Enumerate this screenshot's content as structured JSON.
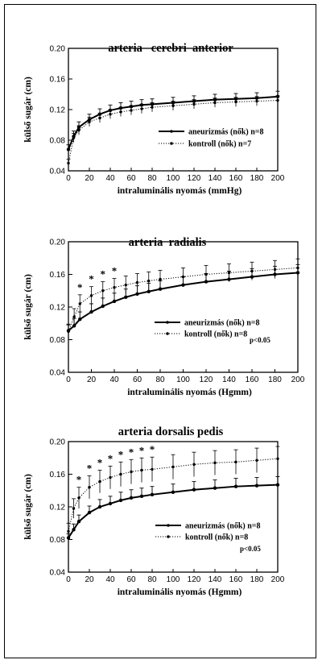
{
  "chart_data": [
    {
      "type": "line",
      "title": "arteria   cerebri  anterior",
      "xlabel": "intraluminális nyomás (mmHg)",
      "ylabel": "külső sugár (cm)",
      "xlim": [
        0,
        200
      ],
      "ylim": [
        0.04,
        0.2
      ],
      "xticks": [
        "0",
        "20",
        "40",
        "60",
        "80",
        "100",
        "120",
        "140",
        "160",
        "180",
        "200"
      ],
      "yticks": [
        "0.04",
        "0.08",
        "0.12",
        "0.16",
        "0.20"
      ],
      "x": [
        0,
        5,
        10,
        20,
        30,
        40,
        50,
        60,
        70,
        80,
        100,
        120,
        140,
        160,
        180,
        200
      ],
      "legend_placement": "right",
      "annotation": "",
      "significant_x": [],
      "significance_symbol": "*",
      "series": [
        {
          "name": "aneurizmás (nők) n=8",
          "style": "solid",
          "values": [
            0.068,
            0.085,
            0.097,
            0.107,
            0.114,
            0.119,
            0.122,
            0.124,
            0.126,
            0.127,
            0.129,
            0.131,
            0.133,
            0.134,
            0.135,
            0.137
          ],
          "errors": [
            0.006,
            0.007,
            0.007,
            0.007,
            0.007,
            0.007,
            0.007,
            0.007,
            0.007,
            0.007,
            0.007,
            0.007,
            0.007,
            0.007,
            0.007,
            0.007
          ]
        },
        {
          "name": "kontroll (nők) n=7",
          "style": "dotted",
          "values": [
            0.05,
            0.083,
            0.093,
            0.104,
            0.109,
            0.114,
            0.117,
            0.119,
            0.121,
            0.123,
            0.125,
            0.127,
            0.129,
            0.13,
            0.131,
            0.132
          ],
          "errors": [
            0.005,
            0.006,
            0.006,
            0.006,
            0.006,
            0.006,
            0.006,
            0.006,
            0.006,
            0.006,
            0.006,
            0.006,
            0.006,
            0.006,
            0.006,
            0.006
          ]
        }
      ]
    },
    {
      "type": "line",
      "title": "arteria  radialis",
      "xlabel": "intraluminális nyomás (Hgmm)",
      "ylabel": "külső sugár (cm)",
      "xlim": [
        0,
        200
      ],
      "ylim": [
        0.04,
        0.2
      ],
      "xticks": [
        "0",
        "20",
        "40",
        "60",
        "80",
        "100",
        "120",
        "140",
        "160",
        "180",
        "200"
      ],
      "yticks": [
        "0.04",
        "0.08",
        "0.12",
        "0.16",
        "0.20"
      ],
      "x": [
        0,
        5,
        10,
        20,
        30,
        40,
        50,
        60,
        70,
        80,
        100,
        120,
        140,
        160,
        180,
        200
      ],
      "legend_placement": "right",
      "annotation": "p<0.05",
      "significant_x": [
        10,
        20,
        30,
        40
      ],
      "significance_symbol": "*",
      "series": [
        {
          "name": "aneurizmás (nők) n=8",
          "style": "solid",
          "values": [
            0.091,
            0.097,
            0.105,
            0.114,
            0.121,
            0.127,
            0.132,
            0.136,
            0.139,
            0.142,
            0.147,
            0.151,
            0.154,
            0.157,
            0.16,
            0.162
          ],
          "errors": [
            0.008,
            0.009,
            0.009,
            0.01,
            0.01,
            0.01,
            0.01,
            0.01,
            0.01,
            0.01,
            0.01,
            0.01,
            0.01,
            0.01,
            0.01,
            0.01
          ]
        },
        {
          "name": "kontroll (nők) n=8",
          "style": "dotted",
          "values": [
            0.09,
            0.108,
            0.124,
            0.134,
            0.14,
            0.144,
            0.147,
            0.15,
            0.152,
            0.154,
            0.157,
            0.16,
            0.162,
            0.164,
            0.166,
            0.168
          ],
          "errors": [
            0.008,
            0.01,
            0.011,
            0.011,
            0.011,
            0.011,
            0.011,
            0.011,
            0.011,
            0.011,
            0.011,
            0.011,
            0.011,
            0.011,
            0.011,
            0.011
          ]
        }
      ]
    },
    {
      "type": "line",
      "title": "arteria dorsalis pedis",
      "xlabel": "intraluminális nyomás (Hgmm)",
      "ylabel": "külső sugár (cm)",
      "xlim": [
        0,
        200
      ],
      "ylim": [
        0.04,
        0.2
      ],
      "xticks": [
        "0",
        "20",
        "40",
        "60",
        "80",
        "100",
        "120",
        "140",
        "160",
        "180",
        "200"
      ],
      "yticks": [
        "0.04",
        "0.08",
        "0.12",
        "0.16",
        "0.20"
      ],
      "x": [
        0,
        5,
        10,
        20,
        30,
        40,
        50,
        60,
        70,
        80,
        100,
        120,
        140,
        160,
        180,
        200
      ],
      "legend_placement": "right",
      "annotation": "p<0.05",
      "significant_x": [
        10,
        20,
        30,
        40,
        50,
        60,
        70,
        80
      ],
      "significance_symbol": "*",
      "series": [
        {
          "name": "aneurizmás (nők) n=8",
          "style": "solid",
          "values": [
            0.082,
            0.092,
            0.102,
            0.113,
            0.12,
            0.124,
            0.128,
            0.131,
            0.133,
            0.135,
            0.138,
            0.141,
            0.143,
            0.145,
            0.146,
            0.147
          ],
          "errors": [
            0.005,
            0.007,
            0.008,
            0.008,
            0.009,
            0.009,
            0.01,
            0.01,
            0.01,
            0.01,
            0.01,
            0.01,
            0.01,
            0.01,
            0.01,
            0.01
          ]
        },
        {
          "name": "kontroll (nők) n=8",
          "style": "dotted",
          "values": [
            0.09,
            0.118,
            0.131,
            0.144,
            0.151,
            0.156,
            0.16,
            0.163,
            0.165,
            0.166,
            0.169,
            0.172,
            0.174,
            0.175,
            0.177,
            0.179
          ],
          "errors": [
            0.01,
            0.012,
            0.013,
            0.014,
            0.014,
            0.014,
            0.015,
            0.015,
            0.015,
            0.015,
            0.015,
            0.015,
            0.015,
            0.015,
            0.015,
            0.015
          ]
        }
      ]
    }
  ]
}
